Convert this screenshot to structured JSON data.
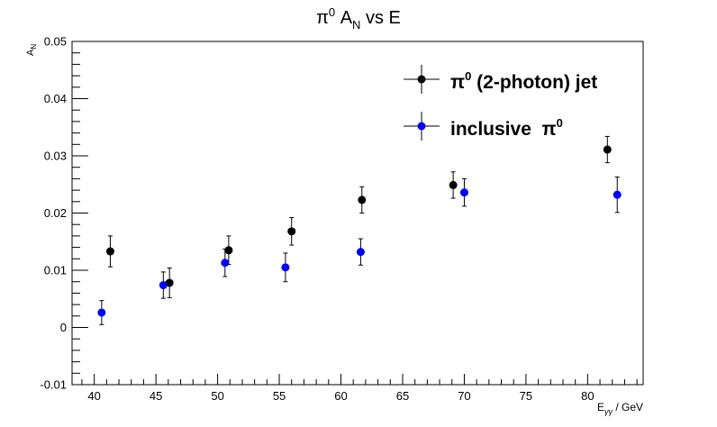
{
  "chart_data": {
    "type": "scatter",
    "title": "π⁰ A_N vs E",
    "title_parts": {
      "base": "π",
      "sup": "0",
      "mid": " A",
      "sub": "N",
      "tail": " vs E"
    },
    "xlabel": "E_γγ / GeV",
    "xlabel_parts": {
      "base": "E",
      "sub": "γγ",
      "tail": " / GeV"
    },
    "ylabel": "A_N",
    "ylabel_parts": {
      "base": "A",
      "sub": "N"
    },
    "xlim": [
      38.2,
      84.5
    ],
    "ylim": [
      -0.01,
      0.05
    ],
    "x_ticks": [
      40,
      45,
      50,
      55,
      60,
      65,
      70,
      75,
      80
    ],
    "x_tick_labels": [
      "40",
      "45",
      "50",
      "55",
      "60",
      "65",
      "70",
      "75",
      "80"
    ],
    "y_ticks": [
      -0.01,
      0,
      0.01,
      0.02,
      0.03,
      0.04,
      0.05
    ],
    "y_tick_labels": [
      "-0.01",
      "0",
      "0.01",
      "0.02",
      "0.03",
      "0.04",
      "0.05"
    ],
    "grid": false,
    "legend_position": "top-right",
    "series": [
      {
        "name": "π⁰ (2-photon) jet",
        "legend_label": {
          "base": "π",
          "sup": "0",
          "tail": " (2-photon) jet"
        },
        "color": "#000000",
        "x": [
          41.3,
          46.1,
          50.9,
          56.0,
          61.7,
          69.1,
          81.6
        ],
        "y": [
          0.0133,
          0.0078,
          0.0135,
          0.0168,
          0.0223,
          0.0249,
          0.0311
        ],
        "err": [
          0.0027,
          0.0026,
          0.0025,
          0.0024,
          0.0023,
          0.0023,
          0.0023
        ]
      },
      {
        "name": "inclusive π⁰",
        "legend_label": {
          "base": "inclusive  π",
          "sup": "0",
          "tail": ""
        },
        "color": "#0000ff",
        "x": [
          40.6,
          45.6,
          50.6,
          55.5,
          61.6,
          70.0,
          82.4
        ],
        "y": [
          0.0026,
          0.0074,
          0.0113,
          0.0105,
          0.0132,
          0.0236,
          0.0232
        ],
        "err": [
          0.0021,
          0.0023,
          0.0024,
          0.0025,
          0.0023,
          0.0024,
          0.0031
        ]
      }
    ]
  }
}
